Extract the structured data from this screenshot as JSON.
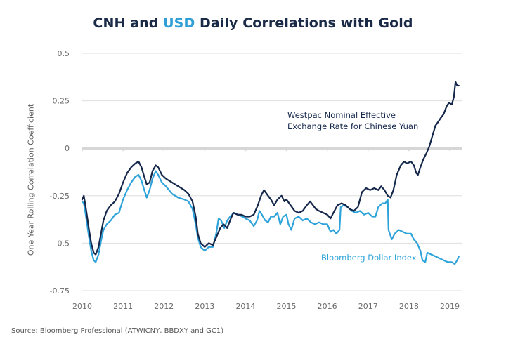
{
  "title": {
    "part1": "CNH and ",
    "accent": "USD",
    "part2": " Daily Correlations with Gold",
    "accent_color": "#2f9fd6",
    "color": "#1b2a47"
  },
  "source": "Source: Bloomberg Professional (ATWICNY, BBDXY and GC1)",
  "chart_data": {
    "type": "line",
    "title": "CNH and USD Daily Correlations with Gold",
    "xlabel": "",
    "ylabel": "One Year Rolling Correlation Coefficient",
    "xlim": [
      2010,
      2019.3
    ],
    "ylim": [
      -0.75,
      0.5
    ],
    "x_ticks": [
      "2010",
      "2011",
      "2012",
      "2013",
      "2014",
      "2015",
      "2016",
      "2017",
      "2018",
      "2019"
    ],
    "x_tick_values": [
      2010,
      2011,
      2012,
      2013,
      2014,
      2015,
      2016,
      2017,
      2018,
      2019
    ],
    "y_ticks": [
      "0.5",
      "0.25",
      "0",
      "-0.25",
      "-0.5",
      "-0.75"
    ],
    "y_tick_values": [
      0.5,
      0.25,
      0,
      -0.25,
      -0.5,
      -0.75
    ],
    "grid": true,
    "legend": "inline annotations",
    "series": [
      {
        "name": "Westpac Nominal Effective Exchange Rate for Chinese Yuan",
        "label_lines": [
          "Westpac Nominal Effective",
          "Exchange Rate for Chinese Yuan"
        ],
        "color": "#15284b",
        "points": [
          [
            2010.0,
            -0.27
          ],
          [
            2010.04,
            -0.25
          ],
          [
            2010.1,
            -0.33
          ],
          [
            2010.16,
            -0.42
          ],
          [
            2010.22,
            -0.5
          ],
          [
            2010.28,
            -0.55
          ],
          [
            2010.33,
            -0.56
          ],
          [
            2010.4,
            -0.52
          ],
          [
            2010.46,
            -0.45
          ],
          [
            2010.52,
            -0.38
          ],
          [
            2010.6,
            -0.33
          ],
          [
            2010.7,
            -0.3
          ],
          [
            2010.8,
            -0.28
          ],
          [
            2010.9,
            -0.24
          ],
          [
            2011.0,
            -0.18
          ],
          [
            2011.1,
            -0.13
          ],
          [
            2011.2,
            -0.1
          ],
          [
            2011.3,
            -0.08
          ],
          [
            2011.38,
            -0.07
          ],
          [
            2011.45,
            -0.1
          ],
          [
            2011.52,
            -0.15
          ],
          [
            2011.58,
            -0.19
          ],
          [
            2011.65,
            -0.18
          ],
          [
            2011.72,
            -0.12
          ],
          [
            2011.8,
            -0.09
          ],
          [
            2011.86,
            -0.1
          ],
          [
            2011.95,
            -0.14
          ],
          [
            2012.05,
            -0.16
          ],
          [
            2012.2,
            -0.18
          ],
          [
            2012.35,
            -0.2
          ],
          [
            2012.5,
            -0.22
          ],
          [
            2012.6,
            -0.24
          ],
          [
            2012.7,
            -0.28
          ],
          [
            2012.78,
            -0.36
          ],
          [
            2012.83,
            -0.45
          ],
          [
            2012.9,
            -0.5
          ],
          [
            2013.0,
            -0.52
          ],
          [
            2013.1,
            -0.5
          ],
          [
            2013.2,
            -0.51
          ],
          [
            2013.3,
            -0.46
          ],
          [
            2013.38,
            -0.42
          ],
          [
            2013.46,
            -0.4
          ],
          [
            2013.55,
            -0.42
          ],
          [
            2013.62,
            -0.38
          ],
          [
            2013.7,
            -0.34
          ],
          [
            2013.8,
            -0.35
          ],
          [
            2013.9,
            -0.35
          ],
          [
            2014.0,
            -0.36
          ],
          [
            2014.1,
            -0.36
          ],
          [
            2014.2,
            -0.35
          ],
          [
            2014.3,
            -0.3
          ],
          [
            2014.38,
            -0.25
          ],
          [
            2014.45,
            -0.22
          ],
          [
            2014.55,
            -0.25
          ],
          [
            2014.62,
            -0.27
          ],
          [
            2014.7,
            -0.3
          ],
          [
            2014.78,
            -0.27
          ],
          [
            2014.88,
            -0.25
          ],
          [
            2014.95,
            -0.28
          ],
          [
            2015.0,
            -0.27
          ],
          [
            2015.1,
            -0.3
          ],
          [
            2015.2,
            -0.33
          ],
          [
            2015.3,
            -0.34
          ],
          [
            2015.4,
            -0.33
          ],
          [
            2015.5,
            -0.3
          ],
          [
            2015.58,
            -0.28
          ],
          [
            2015.65,
            -0.3
          ],
          [
            2015.72,
            -0.32
          ],
          [
            2015.8,
            -0.33
          ],
          [
            2015.9,
            -0.34
          ],
          [
            2016.0,
            -0.35
          ],
          [
            2016.08,
            -0.37
          ],
          [
            2016.15,
            -0.34
          ],
          [
            2016.25,
            -0.3
          ],
          [
            2016.35,
            -0.29
          ],
          [
            2016.45,
            -0.3
          ],
          [
            2016.55,
            -0.32
          ],
          [
            2016.65,
            -0.33
          ],
          [
            2016.75,
            -0.31
          ],
          [
            2016.85,
            -0.23
          ],
          [
            2016.95,
            -0.21
          ],
          [
            2017.05,
            -0.22
          ],
          [
            2017.15,
            -0.21
          ],
          [
            2017.25,
            -0.22
          ],
          [
            2017.32,
            -0.2
          ],
          [
            2017.4,
            -0.22
          ],
          [
            2017.48,
            -0.25
          ],
          [
            2017.55,
            -0.26
          ],
          [
            2017.62,
            -0.22
          ],
          [
            2017.7,
            -0.14
          ],
          [
            2017.8,
            -0.09
          ],
          [
            2017.88,
            -0.07
          ],
          [
            2017.95,
            -0.08
          ],
          [
            2018.05,
            -0.07
          ],
          [
            2018.12,
            -0.09
          ],
          [
            2018.18,
            -0.13
          ],
          [
            2018.22,
            -0.14
          ],
          [
            2018.28,
            -0.1
          ],
          [
            2018.35,
            -0.06
          ],
          [
            2018.42,
            -0.03
          ],
          [
            2018.5,
            0.01
          ],
          [
            2018.58,
            0.07
          ],
          [
            2018.65,
            0.12
          ],
          [
            2018.72,
            0.14
          ],
          [
            2018.78,
            0.16
          ],
          [
            2018.85,
            0.18
          ],
          [
            2018.92,
            0.22
          ],
          [
            2018.98,
            0.24
          ],
          [
            2019.05,
            0.23
          ],
          [
            2019.1,
            0.27
          ],
          [
            2019.14,
            0.35
          ],
          [
            2019.18,
            0.33
          ],
          [
            2019.22,
            0.33
          ]
        ]
      },
      {
        "name": "Bloomberg Dollar Index",
        "label_lines": [
          "Bloomberg Dollar Index"
        ],
        "color": "#2ea3da",
        "points": [
          [
            2010.0,
            -0.28
          ],
          [
            2010.04,
            -0.29
          ],
          [
            2010.1,
            -0.37
          ],
          [
            2010.16,
            -0.46
          ],
          [
            2010.22,
            -0.54
          ],
          [
            2010.28,
            -0.59
          ],
          [
            2010.33,
            -0.6
          ],
          [
            2010.4,
            -0.56
          ],
          [
            2010.46,
            -0.49
          ],
          [
            2010.52,
            -0.43
          ],
          [
            2010.6,
            -0.4
          ],
          [
            2010.7,
            -0.38
          ],
          [
            2010.8,
            -0.35
          ],
          [
            2010.9,
            -0.34
          ],
          [
            2011.0,
            -0.27
          ],
          [
            2011.1,
            -0.22
          ],
          [
            2011.2,
            -0.18
          ],
          [
            2011.3,
            -0.15
          ],
          [
            2011.38,
            -0.14
          ],
          [
            2011.45,
            -0.17
          ],
          [
            2011.52,
            -0.22
          ],
          [
            2011.58,
            -0.26
          ],
          [
            2011.65,
            -0.22
          ],
          [
            2011.72,
            -0.16
          ],
          [
            2011.8,
            -0.12
          ],
          [
            2011.86,
            -0.14
          ],
          [
            2011.95,
            -0.18
          ],
          [
            2012.05,
            -0.2
          ],
          [
            2012.2,
            -0.24
          ],
          [
            2012.35,
            -0.26
          ],
          [
            2012.5,
            -0.27
          ],
          [
            2012.6,
            -0.28
          ],
          [
            2012.7,
            -0.32
          ],
          [
            2012.78,
            -0.4
          ],
          [
            2012.83,
            -0.47
          ],
          [
            2012.9,
            -0.52
          ],
          [
            2013.0,
            -0.54
          ],
          [
            2013.1,
            -0.52
          ],
          [
            2013.2,
            -0.52
          ],
          [
            2013.28,
            -0.45
          ],
          [
            2013.34,
            -0.37
          ],
          [
            2013.4,
            -0.38
          ],
          [
            2013.48,
            -0.42
          ],
          [
            2013.55,
            -0.38
          ],
          [
            2013.62,
            -0.36
          ],
          [
            2013.72,
            -0.34
          ],
          [
            2013.82,
            -0.35
          ],
          [
            2013.92,
            -0.36
          ],
          [
            2014.0,
            -0.37
          ],
          [
            2014.1,
            -0.38
          ],
          [
            2014.2,
            -0.41
          ],
          [
            2014.28,
            -0.38
          ],
          [
            2014.34,
            -0.33
          ],
          [
            2014.4,
            -0.35
          ],
          [
            2014.48,
            -0.38
          ],
          [
            2014.55,
            -0.39
          ],
          [
            2014.62,
            -0.36
          ],
          [
            2014.7,
            -0.36
          ],
          [
            2014.78,
            -0.34
          ],
          [
            2014.85,
            -0.4
          ],
          [
            2014.92,
            -0.36
          ],
          [
            2015.0,
            -0.35
          ],
          [
            2015.05,
            -0.4
          ],
          [
            2015.12,
            -0.43
          ],
          [
            2015.2,
            -0.37
          ],
          [
            2015.3,
            -0.36
          ],
          [
            2015.4,
            -0.38
          ],
          [
            2015.5,
            -0.37
          ],
          [
            2015.6,
            -0.39
          ],
          [
            2015.7,
            -0.4
          ],
          [
            2015.8,
            -0.39
          ],
          [
            2015.9,
            -0.4
          ],
          [
            2016.0,
            -0.4
          ],
          [
            2016.08,
            -0.44
          ],
          [
            2016.15,
            -0.43
          ],
          [
            2016.22,
            -0.45
          ],
          [
            2016.3,
            -0.43
          ],
          [
            2016.33,
            -0.31
          ],
          [
            2016.4,
            -0.3
          ],
          [
            2016.5,
            -0.31
          ],
          [
            2016.6,
            -0.33
          ],
          [
            2016.7,
            -0.34
          ],
          [
            2016.8,
            -0.33
          ],
          [
            2016.9,
            -0.35
          ],
          [
            2017.0,
            -0.34
          ],
          [
            2017.1,
            -0.36
          ],
          [
            2017.18,
            -0.36
          ],
          [
            2017.25,
            -0.31
          ],
          [
            2017.35,
            -0.29
          ],
          [
            2017.42,
            -0.29
          ],
          [
            2017.48,
            -0.27
          ],
          [
            2017.5,
            -0.43
          ],
          [
            2017.58,
            -0.48
          ],
          [
            2017.65,
            -0.45
          ],
          [
            2017.75,
            -0.43
          ],
          [
            2017.85,
            -0.44
          ],
          [
            2017.95,
            -0.45
          ],
          [
            2018.05,
            -0.45
          ],
          [
            2018.12,
            -0.48
          ],
          [
            2018.2,
            -0.5
          ],
          [
            2018.28,
            -0.54
          ],
          [
            2018.33,
            -0.59
          ],
          [
            2018.4,
            -0.6
          ],
          [
            2018.45,
            -0.55
          ],
          [
            2018.55,
            -0.56
          ],
          [
            2018.65,
            -0.57
          ],
          [
            2018.75,
            -0.58
          ],
          [
            2018.85,
            -0.59
          ],
          [
            2018.95,
            -0.6
          ],
          [
            2019.05,
            -0.6
          ],
          [
            2019.12,
            -0.61
          ],
          [
            2019.18,
            -0.59
          ],
          [
            2019.22,
            -0.57
          ]
        ]
      }
    ],
    "zero_line_color": "#d6d6d6"
  }
}
